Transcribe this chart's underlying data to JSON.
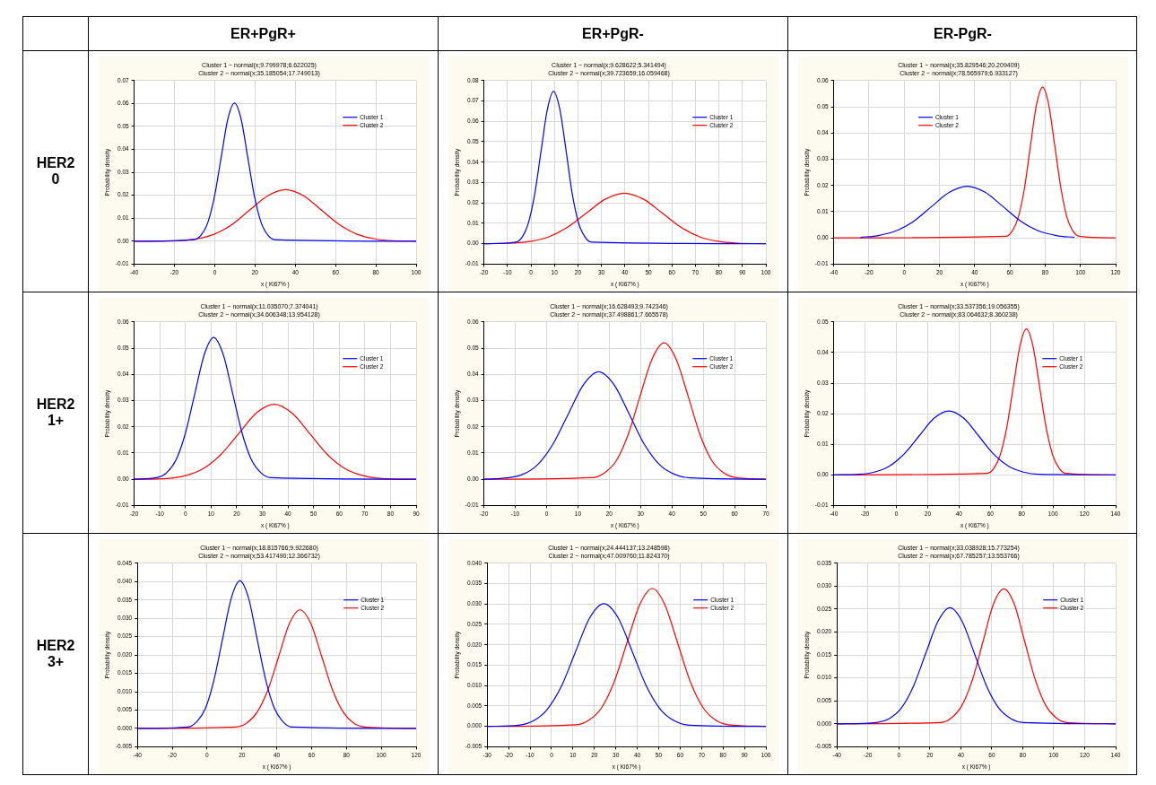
{
  "chart_data": [
    {
      "type": "other",
      "title": "ER+PgR+"
    },
    {
      "type": "other",
      "title": "ER+PgR-"
    },
    {
      "type": "other",
      "title": "ER-PgR-"
    },
    {
      "type": "other",
      "title": "HER2\n0"
    },
    {
      "type": "line",
      "title": "Cluster 1 ~ normal(x;9.799978;6.622025)",
      "subtitle": "Cluster 2 ~ normal(x;35.185054;17.749013)",
      "xlabel": "x ( Ki67% )",
      "ylabel": "Probability density",
      "xlim": [
        -40,
        100
      ],
      "xticks": [
        -40,
        -20,
        0,
        20,
        40,
        60,
        80,
        100
      ],
      "ylim": [
        -0.01,
        0.07
      ],
      "yticks": [
        {
          "value": -0.01,
          "label": "-0.01"
        },
        {
          "value": 0,
          "label": "0.00"
        },
        {
          "value": 0.01,
          "label": "0.01"
        },
        {
          "value": 0.02,
          "label": "0.02"
        },
        {
          "value": 0.03,
          "label": "0.03"
        },
        {
          "value": 0.04,
          "label": "0.04"
        },
        {
          "value": 0.05,
          "label": "0.05"
        },
        {
          "value": 0.06,
          "label": "0.06"
        },
        {
          "value": 0.07,
          "label": "0.07"
        }
      ],
      "grid": true,
      "legend": "top right",
      "marker": "none",
      "line_style": "solid",
      "series": [
        {
          "name": "Cluster 1",
          "color": "#0000ff",
          "x": [
            -40,
            -10.1,
            -6.8,
            -3.4,
            -0.1,
            3.2,
            6.5,
            9.8,
            13.1,
            16.4,
            19.7,
            23.0,
            26.4,
            29.7,
            100
          ],
          "values": [
            0,
            0.0007,
            0.0026,
            0.0082,
            0.0196,
            0.0365,
            0.0532,
            0.0602,
            0.0532,
            0.0365,
            0.0196,
            0.0082,
            0.0026,
            0.0007,
            0
          ]
        },
        {
          "name": "Cluster 2",
          "color": "#ff0000",
          "x": [
            -40,
            -18.1,
            -9.2,
            -0.3,
            8.6,
            17.4,
            26.3,
            35.2,
            44.1,
            52.9,
            61.8,
            70.7,
            79.6,
            88.4,
            100
          ],
          "values": [
            0,
            0.0002,
            0.001,
            0.003,
            0.0073,
            0.0136,
            0.0198,
            0.0225,
            0.0198,
            0.0136,
            0.0073,
            0.003,
            0.001,
            0.0002,
            0
          ]
        }
      ]
    },
    {
      "type": "line",
      "title": "Cluster 1 ~ normal(x;9.628622;5.341494)",
      "subtitle": "Cluster 2 ~ normal(x;39.723659;16.059468)",
      "xlabel": "x ( Ki67% )",
      "ylabel": "Probability density",
      "xlim": [
        -20,
        100
      ],
      "xticks": [
        -20,
        -10,
        0,
        10,
        20,
        30,
        40,
        50,
        60,
        70,
        80,
        90,
        100
      ],
      "ylim": [
        -0.01,
        0.08
      ],
      "yticks": [
        {
          "value": -0.01,
          "label": "-0.01"
        },
        {
          "value": 0,
          "label": "0.00"
        },
        {
          "value": 0.01,
          "label": "0.01"
        },
        {
          "value": 0.02,
          "label": "0.02"
        },
        {
          "value": 0.03,
          "label": "0.03"
        },
        {
          "value": 0.04,
          "label": "0.04"
        },
        {
          "value": 0.05,
          "label": "0.05"
        },
        {
          "value": 0.06,
          "label": "0.06"
        },
        {
          "value": 0.07,
          "label": "0.07"
        },
        {
          "value": 0.08,
          "label": "0.08"
        }
      ],
      "grid": true,
      "legend": "top right",
      "marker": "none",
      "line_style": "solid",
      "series": [
        {
          "name": "Cluster 1",
          "color": "#0000ff",
          "x": [
            -20,
            -6.4,
            -3.7,
            -1.1,
            1.6,
            4.3,
            7.0,
            9.6,
            12.3,
            15.0,
            17.6,
            20.3,
            23.0,
            25.7,
            100
          ],
          "values": [
            0,
            0.0008,
            0.0033,
            0.0101,
            0.0243,
            0.0453,
            0.0659,
            0.0747,
            0.0659,
            0.0453,
            0.0243,
            0.0101,
            0.0033,
            0.0008,
            0
          ]
        },
        {
          "name": "Cluster 2",
          "color": "#ff0000",
          "x": [
            -20,
            -8.5,
            -0.4,
            7.6,
            15.6,
            23.7,
            31.7,
            39.7,
            47.8,
            55.8,
            63.8,
            71.8,
            79.9,
            87.9,
            100
          ],
          "values": [
            0,
            0.0003,
            0.0011,
            0.0034,
            0.0081,
            0.0151,
            0.0219,
            0.0248,
            0.0219,
            0.0151,
            0.0081,
            0.0034,
            0.0011,
            0.0003,
            0
          ]
        }
      ]
    },
    {
      "type": "line",
      "title": "Cluster 1 ~ normal(x;35.829546;20.209409)",
      "subtitle": "Cluster 2 ~ normal(x;78.565979;6.933127)",
      "xlabel": "x ( Ki67% )",
      "ylabel": "Probability density",
      "xlim": [
        -40,
        120
      ],
      "xticks": [
        -40,
        -20,
        0,
        20,
        40,
        60,
        80,
        100,
        120
      ],
      "ylim": [
        -0.01,
        0.06
      ],
      "yticks": [
        {
          "value": -0.01,
          "label": "-0.01"
        },
        {
          "value": 0,
          "label": "0.00"
        },
        {
          "value": 0.01,
          "label": "0.01"
        },
        {
          "value": 0.02,
          "label": "0.02"
        },
        {
          "value": 0.03,
          "label": "0.03"
        },
        {
          "value": 0.04,
          "label": "0.04"
        },
        {
          "value": 0.05,
          "label": "0.05"
        },
        {
          "value": 0.06,
          "label": "0.06"
        }
      ],
      "grid": true,
      "legend": "top left",
      "marker": "none",
      "line_style": "solid",
      "series": [
        {
          "name": "Cluster 1",
          "color": "#0000ff",
          "x": [
            -24.8,
            -14.7,
            -4.6,
            5.5,
            15.6,
            25.7,
            35.8,
            45.9,
            56.0,
            66.1,
            76.2,
            86.4,
            96.5
          ],
          "values": [
            0.0002,
            0.0009,
            0.0027,
            0.0064,
            0.012,
            0.0174,
            0.0197,
            0.0174,
            0.012,
            0.0064,
            0.0027,
            0.0009,
            0.0002
          ]
        },
        {
          "name": "Cluster 2",
          "color": "#ff0000",
          "x": [
            -40,
            57.8,
            61.2,
            64.7,
            68.2,
            71.6,
            75.1,
            78.6,
            82.0,
            85.5,
            89.0,
            92.4,
            95.9,
            99.4,
            120
          ],
          "values": [
            0,
            0.0006,
            0.0025,
            0.0078,
            0.0187,
            0.0349,
            0.0508,
            0.0575,
            0.0508,
            0.0349,
            0.0187,
            0.0078,
            0.0025,
            0.0006,
            0
          ]
        }
      ]
    },
    {
      "type": "other",
      "title": "HER2\n1+"
    },
    {
      "type": "line",
      "title": "Cluster 1 ~ normal(x;11.035070;7.374041)",
      "subtitle": "Cluster 2 ~ normal(x;34.606348;13.954128)",
      "xlabel": "x ( Ki67% )",
      "ylabel": "Probability density",
      "xlim": [
        -20,
        90
      ],
      "xticks": [
        -20,
        -10,
        0,
        10,
        20,
        30,
        40,
        50,
        60,
        70,
        80,
        90
      ],
      "ylim": [
        -0.01,
        0.06
      ],
      "yticks": [
        {
          "value": -0.01,
          "label": "-0.01"
        },
        {
          "value": 0,
          "label": "0.00"
        },
        {
          "value": 0.01,
          "label": "0.01"
        },
        {
          "value": 0.02,
          "label": "0.02"
        },
        {
          "value": 0.03,
          "label": "0.03"
        },
        {
          "value": 0.04,
          "label": "0.04"
        },
        {
          "value": 0.05,
          "label": "0.05"
        },
        {
          "value": 0.06,
          "label": "0.06"
        }
      ],
      "grid": true,
      "legend": "top right",
      "marker": "none",
      "line_style": "solid",
      "series": [
        {
          "name": "Cluster 1",
          "color": "#0000ff",
          "x": [
            -20,
            -11.1,
            -7.4,
            -3.7,
            0.0,
            3.7,
            7.4,
            11.0,
            14.7,
            18.4,
            22.1,
            25.8,
            29.5,
            33.2,
            90
          ],
          "values": [
            0,
            0.0006,
            0.0024,
            0.0073,
            0.0176,
            0.0328,
            0.0477,
            0.0541,
            0.0477,
            0.0328,
            0.0176,
            0.0073,
            0.0024,
            0.0006,
            0
          ]
        },
        {
          "name": "Cluster 2",
          "color": "#ff0000",
          "x": [
            -20,
            -7.2,
            -0.3,
            6.7,
            13.7,
            20.7,
            27.6,
            34.6,
            41.6,
            48.6,
            55.5,
            62.5,
            69.5,
            76.5,
            90
          ],
          "values": [
            0,
            0.0003,
            0.0013,
            0.0039,
            0.0093,
            0.0173,
            0.0252,
            0.0286,
            0.0252,
            0.0173,
            0.0093,
            0.0039,
            0.0013,
            0.0003,
            0
          ]
        }
      ]
    },
    {
      "type": "line",
      "title": "Cluster 1 ~ normal(x;16.628493;9.742346)",
      "subtitle": "Cluster 2 ~ normal(x;37.498861;7.665578)",
      "xlabel": "x ( Ki67% )",
      "ylabel": "Probability density",
      "xlim": [
        -20,
        70
      ],
      "xticks": [
        -20,
        -10,
        0,
        10,
        20,
        30,
        40,
        50,
        60,
        70
      ],
      "ylim": [
        -0.01,
        0.06
      ],
      "yticks": [
        {
          "value": -0.01,
          "label": "-0.01"
        },
        {
          "value": 0,
          "label": "0.00"
        },
        {
          "value": 0.01,
          "label": "0.01"
        },
        {
          "value": 0.02,
          "label": "0.02"
        },
        {
          "value": 0.03,
          "label": "0.03"
        },
        {
          "value": 0.04,
          "label": "0.04"
        },
        {
          "value": 0.05,
          "label": "0.05"
        },
        {
          "value": 0.06,
          "label": "0.06"
        }
      ],
      "grid": true,
      "legend": "top right",
      "marker": "none",
      "line_style": "solid",
      "series": [
        {
          "name": "Cluster 1",
          "color": "#0000ff",
          "x": [
            -20,
            -12.6,
            -7.7,
            -2.9,
            2.0,
            6.9,
            11.8,
            16.6,
            21.5,
            26.4,
            31.2,
            36.1,
            41.0,
            45.9,
            70
          ],
          "values": [
            0,
            0.0005,
            0.0018,
            0.0055,
            0.0133,
            0.0248,
            0.0361,
            0.041,
            0.0361,
            0.0248,
            0.0133,
            0.0055,
            0.0018,
            0.0005,
            0
          ]
        },
        {
          "name": "Cluster 2",
          "color": "#ff0000",
          "x": [
            -20,
            14.5,
            18.3,
            22.2,
            26.0,
            29.8,
            33.7,
            37.5,
            41.3,
            45.2,
            49.0,
            52.8,
            56.7,
            60.5,
            70
          ],
          "values": [
            0,
            0.0006,
            0.0023,
            0.007,
            0.0169,
            0.0316,
            0.0459,
            0.052,
            0.0459,
            0.0316,
            0.0169,
            0.007,
            0.0023,
            0.0006,
            0
          ]
        }
      ]
    },
    {
      "type": "line",
      "title": "Cluster 1 ~ normal(x;33.537356;19.056355)",
      "subtitle": "Cluster 2 ~ normal(x;83.064632;8.360238)",
      "xlabel": "x ( Ki67% )",
      "ylabel": "Probability density",
      "xlim": [
        -40,
        140
      ],
      "xticks": [
        -40,
        -20,
        0,
        20,
        40,
        60,
        80,
        100,
        120,
        140
      ],
      "ylim": [
        -0.01,
        0.05
      ],
      "yticks": [
        {
          "value": -0.01,
          "label": "-0.01"
        },
        {
          "value": 0,
          "label": "0.00"
        },
        {
          "value": 0.01,
          "label": "0.01"
        },
        {
          "value": 0.02,
          "label": "0.02"
        },
        {
          "value": 0.03,
          "label": "0.03"
        },
        {
          "value": 0.04,
          "label": "0.04"
        },
        {
          "value": 0.05,
          "label": "0.05"
        }
      ],
      "grid": true,
      "legend": "top right",
      "marker": "none",
      "line_style": "solid",
      "series": [
        {
          "name": "Cluster 1",
          "color": "#0000ff",
          "x": [
            -40,
            -23.6,
            -14.1,
            -4.6,
            4.9,
            14.5,
            24.0,
            33.5,
            43.1,
            52.6,
            62.1,
            71.7,
            81.2,
            90.7,
            140
          ],
          "values": [
            0,
            0.0002,
            0.0009,
            0.0028,
            0.0068,
            0.0127,
            0.0185,
            0.0209,
            0.0185,
            0.0127,
            0.0068,
            0.0028,
            0.0009,
            0.0002,
            0
          ]
        },
        {
          "name": "Cluster 2",
          "color": "#ff0000",
          "x": [
            -40,
            58.0,
            62.2,
            66.3,
            70.5,
            74.7,
            78.9,
            83.1,
            87.2,
            91.4,
            95.6,
            99.8,
            104.0,
            108.1,
            140
          ],
          "values": [
            0,
            0.0005,
            0.0021,
            0.0065,
            0.0155,
            0.0289,
            0.0421,
            0.0477,
            0.0421,
            0.0289,
            0.0155,
            0.0065,
            0.0021,
            0.0005,
            0
          ]
        }
      ]
    },
    {
      "type": "other",
      "title": "HER2\n3+"
    },
    {
      "type": "line",
      "title": "Cluster 1 ~ normal(x;18.815766;9.922680)",
      "subtitle": "Cluster 2 ~ normal(x;53.417490;12.366732)",
      "xlabel": "x ( Ki67% )",
      "ylabel": "Probability density",
      "xlim": [
        -40,
        120
      ],
      "xticks": [
        -40,
        -20,
        0,
        20,
        40,
        60,
        80,
        100,
        120
      ],
      "ylim": [
        -0.005,
        0.045
      ],
      "yticks": [
        {
          "value": -0.005,
          "label": "-0.005"
        },
        {
          "value": 0,
          "label": "0.000"
        },
        {
          "value": 0.005,
          "label": "0.005"
        },
        {
          "value": 0.01,
          "label": "0.010"
        },
        {
          "value": 0.015,
          "label": "0.015"
        },
        {
          "value": 0.02,
          "label": "0.020"
        },
        {
          "value": 0.025,
          "label": "0.025"
        },
        {
          "value": 0.03,
          "label": "0.030"
        },
        {
          "value": 0.035,
          "label": "0.035"
        },
        {
          "value": 0.04,
          "label": "0.040"
        },
        {
          "value": 0.045,
          "label": "0.045"
        }
      ],
      "grid": true,
      "legend": "top right",
      "marker": "none",
      "line_style": "solid",
      "series": [
        {
          "name": "Cluster 1",
          "color": "#0000ff",
          "x": [
            -40,
            -11.0,
            -6.0,
            -1.0,
            3.9,
            8.9,
            13.9,
            18.8,
            23.8,
            28.7,
            33.7,
            38.7,
            43.6,
            48.6,
            120
          ],
          "values": [
            0,
            0.0004,
            0.0018,
            0.0054,
            0.0131,
            0.0244,
            0.0355,
            0.0402,
            0.0355,
            0.0244,
            0.0131,
            0.0054,
            0.0018,
            0.0004,
            0
          ]
        },
        {
          "name": "Cluster 2",
          "color": "#ff0000",
          "x": [
            -40,
            16.3,
            22.5,
            28.7,
            34.9,
            41.1,
            47.2,
            53.4,
            59.6,
            65.8,
            72.0,
            78.2,
            84.3,
            90.5,
            120
          ],
          "values": [
            0,
            0.0004,
            0.0014,
            0.0044,
            0.0105,
            0.0196,
            0.0285,
            0.0323,
            0.0285,
            0.0196,
            0.0105,
            0.0044,
            0.0014,
            0.0004,
            0
          ]
        }
      ]
    },
    {
      "type": "line",
      "title": "Cluster 1 ~ normal(x;24.444137;13.248598)",
      "subtitle": "Cluster 2 ~ normal(x;47.009760;11.824370)",
      "xlabel": "x ( Ki67% )",
      "ylabel": "Probability density",
      "xlim": [
        -30,
        100
      ],
      "xticks": [
        -30,
        -20,
        -10,
        0,
        10,
        20,
        30,
        40,
        50,
        60,
        70,
        80,
        90,
        100
      ],
      "ylim": [
        -0.005,
        0.04
      ],
      "yticks": [
        {
          "value": -0.005,
          "label": "-0.005"
        },
        {
          "value": 0,
          "label": "0.000"
        },
        {
          "value": 0.005,
          "label": "0.005"
        },
        {
          "value": 0.01,
          "label": "0.010"
        },
        {
          "value": 0.015,
          "label": "0.015"
        },
        {
          "value": 0.02,
          "label": "0.020"
        },
        {
          "value": 0.025,
          "label": "0.025"
        },
        {
          "value": 0.03,
          "label": "0.030"
        },
        {
          "value": 0.035,
          "label": "0.035"
        },
        {
          "value": 0.04,
          "label": "0.040"
        }
      ],
      "grid": true,
      "legend": "top right",
      "marker": "none",
      "line_style": "solid",
      "series": [
        {
          "name": "Cluster 1",
          "color": "#0000ff",
          "x": [
            -30,
            -15.3,
            -8.7,
            -2.1,
            4.6,
            11.2,
            17.8,
            24.4,
            31.1,
            37.7,
            44.3,
            50.9,
            57.6,
            64.2,
            100
          ],
          "values": [
            0,
            0.0003,
            0.0013,
            0.0041,
            0.0098,
            0.0183,
            0.0266,
            0.0301,
            0.0266,
            0.0183,
            0.0098,
            0.0041,
            0.0013,
            0.0003,
            0
          ]
        },
        {
          "name": "Cluster 2",
          "color": "#ff0000",
          "x": [
            -30,
            11.5,
            17.4,
            23.4,
            29.3,
            35.2,
            41.1,
            47.0,
            52.9,
            58.8,
            64.7,
            70.7,
            76.6,
            82.5,
            100
          ],
          "values": [
            0,
            0.0004,
            0.0015,
            0.0046,
            0.011,
            0.0205,
            0.0298,
            0.0338,
            0.0298,
            0.0205,
            0.011,
            0.0046,
            0.0015,
            0.0004,
            0
          ]
        }
      ]
    },
    {
      "type": "line",
      "title": "Cluster 1 ~ normal(x;33.038928;15.773254)",
      "subtitle": "Cluster 2 ~ normal(x;67.785257;13.553766)",
      "xlabel": "x ( Ki67% )",
      "ylabel": "Probability density",
      "xlim": [
        -40,
        140
      ],
      "xticks": [
        -40,
        -20,
        0,
        20,
        40,
        60,
        80,
        100,
        120,
        140
      ],
      "ylim": [
        -0.005,
        0.035
      ],
      "yticks": [
        {
          "value": -0.005,
          "label": "-0.005"
        },
        {
          "value": 0,
          "label": "0.000"
        },
        {
          "value": 0.005,
          "label": "0.005"
        },
        {
          "value": 0.01,
          "label": "0.010"
        },
        {
          "value": 0.015,
          "label": "0.015"
        },
        {
          "value": 0.02,
          "label": "0.020"
        },
        {
          "value": 0.025,
          "label": "0.025"
        },
        {
          "value": 0.03,
          "label": "0.030"
        },
        {
          "value": 0.035,
          "label": "0.035"
        }
      ],
      "grid": true,
      "legend": "top right",
      "marker": "none",
      "line_style": "solid",
      "series": [
        {
          "name": "Cluster 1",
          "color": "#0000ff",
          "x": [
            -40,
            -14.3,
            -6.4,
            1.5,
            9.4,
            17.3,
            25.2,
            33.0,
            40.9,
            48.8,
            56.7,
            64.6,
            72.5,
            80.4,
            140
          ],
          "values": [
            0,
            0.0003,
            0.0011,
            0.0034,
            0.0082,
            0.0153,
            0.0223,
            0.0253,
            0.0223,
            0.0153,
            0.0082,
            0.0034,
            0.0011,
            0.0003,
            0
          ]
        },
        {
          "name": "Cluster 2",
          "color": "#ff0000",
          "x": [
            -40,
            27.1,
            33.9,
            40.7,
            47.5,
            54.3,
            61.0,
            67.8,
            74.6,
            81.3,
            88.1,
            94.9,
            101.7,
            108.4,
            140
          ],
          "values": [
            0,
            0.0003,
            0.0013,
            0.004,
            0.0096,
            0.0179,
            0.026,
            0.0294,
            0.026,
            0.0179,
            0.0096,
            0.004,
            0.0013,
            0.0003,
            0
          ]
        }
      ]
    }
  ]
}
